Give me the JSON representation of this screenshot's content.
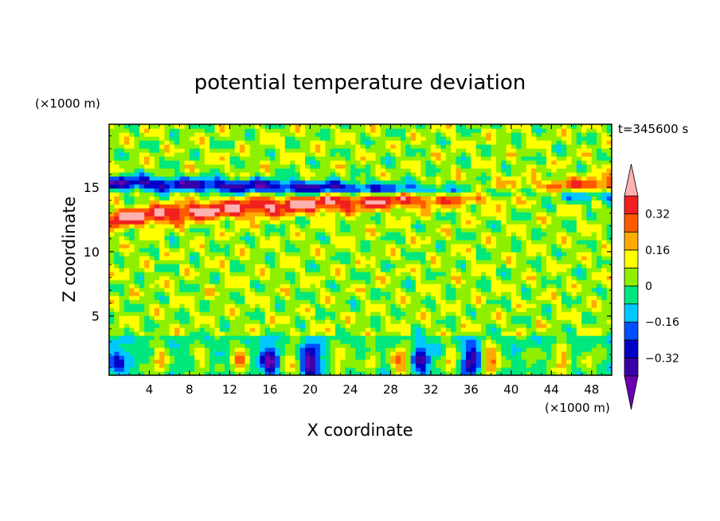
{
  "chart_data": {
    "type": "heatmap",
    "title": "potential temperature deviation",
    "xlabel": "X coordinate",
    "ylabel": "Z coordinate",
    "x_unit": "(×1000 m)",
    "y_unit": "(×1000 m)",
    "time_label": "t=345600 s",
    "xlim": [
      0,
      50
    ],
    "ylim": [
      0.4,
      19.9
    ],
    "x_ticks": [
      4,
      8,
      12,
      16,
      20,
      24,
      28,
      32,
      36,
      40,
      44,
      48
    ],
    "y_ticks": [
      5,
      10,
      15
    ],
    "colorbar": {
      "levels": [
        -0.4,
        -0.32,
        -0.24,
        -0.16,
        -0.08,
        0,
        0.08,
        0.16,
        0.24,
        0.32,
        0.4
      ],
      "tick_labels": [
        "0.32",
        "0.16",
        "0",
        "−0.16",
        "−0.32"
      ],
      "tick_values": [
        0.32,
        0.16,
        0,
        -0.16,
        -0.32
      ],
      "colors": [
        "#6a00b0",
        "#3a00a8",
        "#0000c8",
        "#0050ff",
        "#00c8ff",
        "#00e87c",
        "#8ef000",
        "#ffff00",
        "#ffaa00",
        "#ff5a00",
        "#f02020",
        "#ffb0b0"
      ],
      "extend": "both"
    },
    "background_level": 0.05,
    "features": [
      {
        "kind": "band",
        "name": "upper warm layer",
        "x": [
          0,
          50
        ],
        "z_left": 12.4,
        "z_right": 15.0,
        "value": 0.36
      },
      {
        "kind": "band",
        "name": "upper cold layer",
        "x": [
          0,
          50
        ],
        "z_left": 15.4,
        "z_right": 14.4,
        "value": -0.38
      },
      {
        "kind": "band",
        "name": "boundary layer",
        "x": [
          0,
          50
        ],
        "z": [
          0.4,
          3.6
        ],
        "value": -0.05
      },
      {
        "kind": "cells",
        "name": "boundary layer cells",
        "x": [
          1,
          5,
          9,
          13,
          16,
          18,
          20,
          23,
          26,
          29,
          31,
          34,
          36,
          38,
          42,
          45,
          48
        ],
        "values": [
          -0.2,
          0.25,
          0.18,
          0.3,
          -0.36,
          0.22,
          -0.4,
          0.2,
          0.15,
          0.34,
          -0.3,
          0.22,
          -0.36,
          0.35,
          0.1,
          0.28,
          0.15
        ]
      }
    ]
  }
}
